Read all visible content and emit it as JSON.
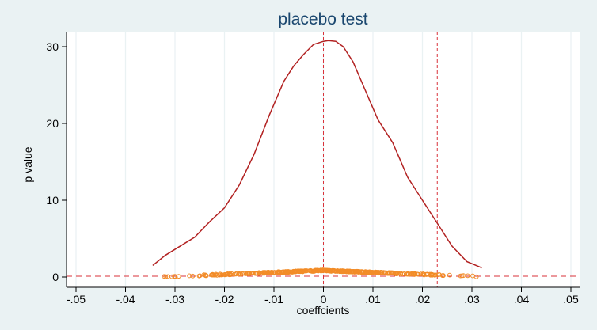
{
  "chart_data": {
    "type": "line",
    "title": "placebo test",
    "xlabel": "coeffcients",
    "ylabel": "p value",
    "xlim": [
      -0.05,
      0.05
    ],
    "ylim": [
      0,
      31.5
    ],
    "x_ticks": [
      -0.05,
      -0.04,
      -0.03,
      -0.02,
      -0.01,
      0,
      0.01,
      0.02,
      0.03,
      0.04,
      0.05
    ],
    "x_tick_labels": [
      "-.05",
      "-.04",
      "-.03",
      "-.02",
      "-.01",
      "0",
      ".01",
      ".02",
      ".03",
      ".04",
      ".05"
    ],
    "y_ticks": [
      0,
      10,
      20,
      30
    ],
    "y_tick_labels": [
      "0",
      "10",
      "20",
      "30"
    ],
    "grid": "vertical",
    "reference_lines": {
      "vertical": [
        0,
        0.023
      ],
      "horizontal": [
        0.1
      ]
    },
    "colors": {
      "density": "#b22222",
      "scatter": "#f28c28",
      "reference": "#d9323a",
      "title": "#1a476f",
      "plot_background": "#ffffff",
      "outer_background": "#eaf2f3"
    },
    "density_curve": {
      "x": [
        -0.0345,
        -0.032,
        -0.029,
        -0.026,
        -0.023,
        -0.02,
        -0.017,
        -0.014,
        -0.011,
        -0.008,
        -0.006,
        -0.004,
        -0.002,
        0,
        0.001,
        0.0025,
        0.004,
        0.006,
        0.008,
        0.011,
        0.014,
        0.017,
        0.02,
        0.023,
        0.026,
        0.029,
        0.032
      ],
      "y": [
        1.5,
        2.8,
        4.0,
        5.2,
        7.2,
        9.0,
        12.0,
        16.0,
        21.0,
        25.5,
        27.5,
        29.0,
        30.3,
        30.7,
        30.8,
        30.7,
        30.0,
        28.0,
        25.0,
        20.5,
        17.5,
        13.0,
        10.0,
        7.0,
        4.0,
        2.0,
        1.2
      ]
    },
    "scatter": {
      "name": "",
      "x_range": [
        -0.034,
        0.0325
      ],
      "peak_x": 0.0,
      "peak_y": 0.85,
      "n_points": 500
    }
  }
}
